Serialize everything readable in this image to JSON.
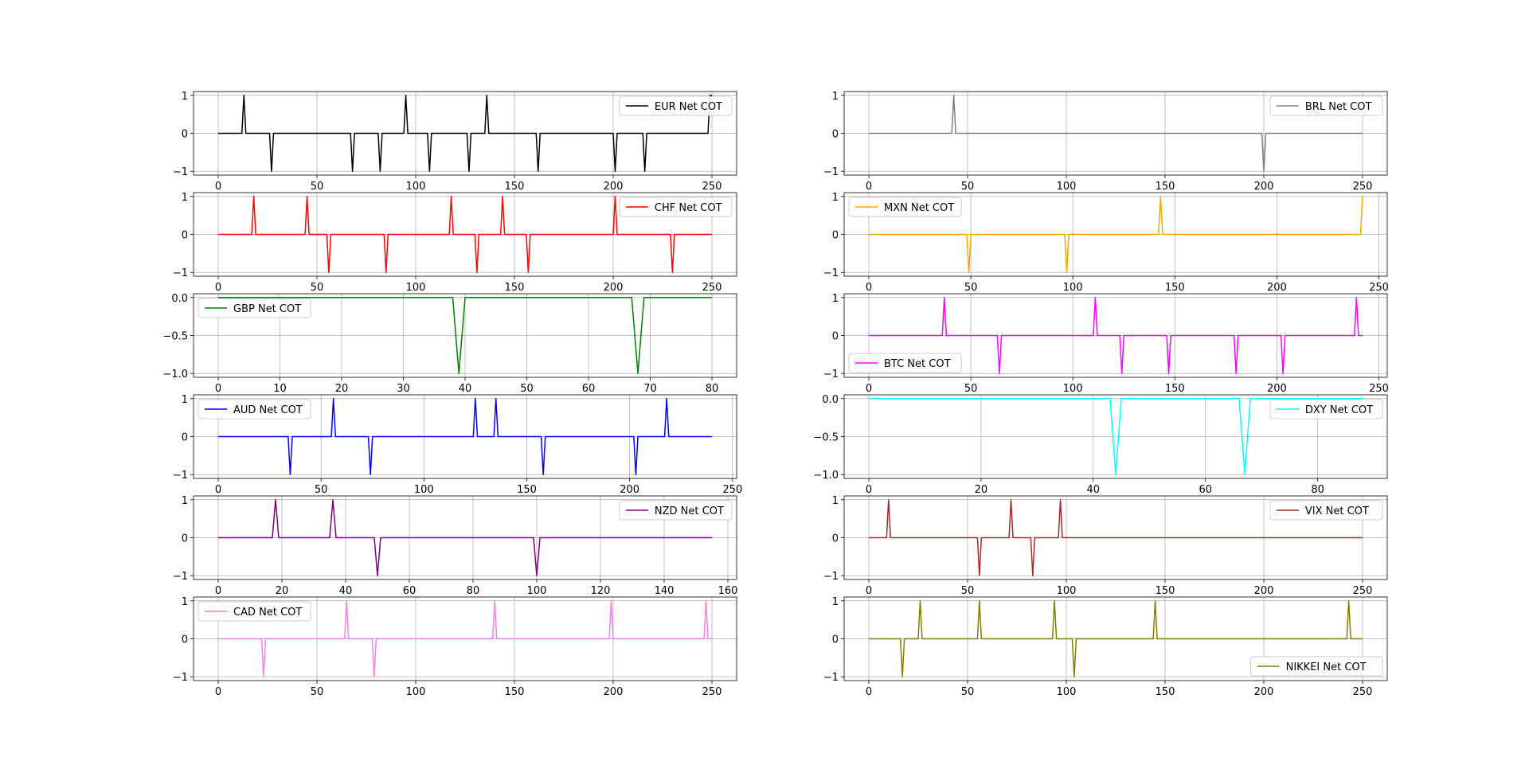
{
  "chart_data": [
    {
      "type": "line",
      "series": [
        {
          "name": "EUR Net COT",
          "color": "#000000",
          "x": [
            0,
            12,
            13,
            14,
            26,
            27,
            28,
            67,
            68,
            69,
            81,
            82,
            83,
            94,
            95,
            96,
            106,
            107,
            108,
            126,
            127,
            128,
            135,
            136,
            137,
            161,
            162,
            163,
            200,
            201,
            202,
            215,
            216,
            217,
            248,
            249,
            250
          ],
          "y": [
            0,
            0,
            1,
            0,
            0,
            -1,
            0,
            0,
            -1,
            0,
            0,
            -1,
            0,
            0,
            1,
            0,
            0,
            -1,
            0,
            0,
            -1,
            0,
            0,
            1,
            0,
            0,
            -1,
            0,
            0,
            -1,
            0,
            0,
            -1,
            0,
            0,
            1,
            1
          ]
        }
      ],
      "xticks": [
        "0",
        "50",
        "100",
        "150",
        "200",
        "250"
      ],
      "yticks": [
        "−1",
        "0",
        "1"
      ],
      "xlim": [
        -12.5,
        262.5
      ],
      "ylim": [
        -1.1,
        1.1
      ],
      "legend": "upper right",
      "grid": true
    },
    {
      "type": "line",
      "series": [
        {
          "name": "CHF Net COT",
          "color": "#ff0000",
          "x": [
            0,
            17,
            18,
            19,
            44,
            45,
            46,
            55,
            56,
            57,
            84,
            85,
            86,
            117,
            118,
            119,
            130,
            131,
            132,
            143,
            144,
            145,
            156,
            157,
            158,
            200,
            201,
            202,
            229,
            230,
            231,
            250
          ],
          "y": [
            0,
            0,
            1,
            0,
            0,
            1,
            0,
            0,
            -1,
            0,
            0,
            -1,
            0,
            0,
            1,
            0,
            0,
            -1,
            0,
            0,
            1,
            0,
            0,
            -1,
            0,
            0,
            1,
            0,
            0,
            -1,
            0,
            0
          ]
        }
      ],
      "xticks": [
        "0",
        "50",
        "100",
        "150",
        "200",
        "250"
      ],
      "yticks": [
        "−1",
        "0",
        "1"
      ],
      "xlim": [
        -12.5,
        262.5
      ],
      "ylim": [
        -1.1,
        1.1
      ],
      "legend": "upper right",
      "grid": true
    },
    {
      "type": "line",
      "series": [
        {
          "name": "GBP Net COT",
          "color": "#008000",
          "x": [
            0,
            38,
            39,
            40,
            67,
            68,
            69,
            80
          ],
          "y": [
            0,
            0,
            -1,
            0,
            0,
            -1,
            0,
            0
          ]
        }
      ],
      "xticks": [
        "0",
        "10",
        "20",
        "30",
        "40",
        "50",
        "60",
        "70",
        "80"
      ],
      "yticks": [
        "−1.0",
        "−0.5",
        "0.0"
      ],
      "xlim": [
        -4,
        84
      ],
      "ylim": [
        -1.05,
        0.05
      ],
      "legend": "upper left",
      "grid": true
    },
    {
      "type": "line",
      "series": [
        {
          "name": "AUD Net COT",
          "color": "#0000ff",
          "x": [
            0,
            34,
            35,
            36,
            55,
            56,
            57,
            73,
            74,
            75,
            124,
            125,
            126,
            134,
            135,
            136,
            157,
            158,
            159,
            202,
            203,
            204,
            217,
            218,
            219,
            240
          ],
          "y": [
            0,
            0,
            -1,
            0,
            0,
            1,
            0,
            0,
            -1,
            0,
            0,
            1,
            0,
            0,
            1,
            0,
            0,
            -1,
            0,
            0,
            -1,
            0,
            0,
            1,
            0,
            0
          ]
        }
      ],
      "xticks": [
        "0",
        "50",
        "100",
        "150",
        "200",
        "250"
      ],
      "yticks": [
        "−1",
        "0",
        "1"
      ],
      "xlim": [
        -12,
        252
      ],
      "ylim": [
        -1.1,
        1.1
      ],
      "legend": "upper left",
      "grid": true
    },
    {
      "type": "line",
      "series": [
        {
          "name": "NZD Net COT",
          "color": "#800080",
          "x": [
            0,
            17,
            18,
            19,
            35,
            36,
            37,
            49,
            50,
            51,
            99,
            100,
            101,
            155
          ],
          "y": [
            0,
            0,
            1,
            0,
            0,
            1,
            0,
            0,
            -1,
            0,
            0,
            -1,
            0,
            0
          ]
        }
      ],
      "xticks": [
        "0",
        "20",
        "40",
        "60",
        "80",
        "100",
        "120",
        "140",
        "160"
      ],
      "yticks": [
        "−1",
        "0",
        "1"
      ],
      "xlim": [
        -7.75,
        162.75
      ],
      "ylim": [
        -1.1,
        1.1
      ],
      "legend": "upper right",
      "grid": true
    },
    {
      "type": "line",
      "series": [
        {
          "name": "CAD Net COT",
          "color": "#ee82ee",
          "x": [
            0,
            22,
            23,
            24,
            64,
            65,
            66,
            78,
            79,
            80,
            139,
            140,
            141,
            198,
            199,
            200,
            246,
            247,
            248,
            250
          ],
          "y": [
            0,
            0,
            -1,
            0,
            0,
            1,
            0,
            0,
            -1,
            0,
            0,
            1,
            0,
            0,
            1,
            0,
            0,
            1,
            0,
            0
          ]
        }
      ],
      "xticks": [
        "0",
        "50",
        "100",
        "150",
        "200",
        "250"
      ],
      "yticks": [
        "−1",
        "0",
        "1"
      ],
      "xlim": [
        -12.5,
        262.5
      ],
      "ylim": [
        -1.1,
        1.1
      ],
      "legend": "upper left",
      "grid": true
    },
    {
      "type": "line",
      "series": [
        {
          "name": "BRL Net COT",
          "color": "#808080",
          "x": [
            0,
            42,
            43,
            44,
            199,
            200,
            201,
            250
          ],
          "y": [
            0,
            0,
            1,
            0,
            0,
            -1,
            0,
            0
          ]
        }
      ],
      "xticks": [
        "0",
        "50",
        "100",
        "150",
        "200",
        "250"
      ],
      "yticks": [
        "−1",
        "0",
        "1"
      ],
      "xlim": [
        -12.5,
        262.5
      ],
      "ylim": [
        -1.1,
        1.1
      ],
      "legend": "upper right",
      "grid": true
    },
    {
      "type": "line",
      "series": [
        {
          "name": "MXN Net COT",
          "color": "#ffa500",
          "x": [
            0,
            48,
            49,
            50,
            96,
            97,
            98,
            142,
            143,
            144,
            241,
            242
          ],
          "y": [
            0,
            0,
            -1,
            0,
            0,
            -1,
            0,
            0,
            1,
            0,
            0,
            1
          ]
        }
      ],
      "xticks": [
        "0",
        "50",
        "100",
        "150",
        "200",
        "250"
      ],
      "yticks": [
        "−1",
        "0",
        "1"
      ],
      "xlim": [
        -12.1,
        254.1
      ],
      "ylim": [
        -1.1,
        1.1
      ],
      "legend": "upper left",
      "grid": true
    },
    {
      "type": "line",
      "series": [
        {
          "name": "BTC Net COT",
          "color": "#ff00ff",
          "x": [
            0,
            36,
            37,
            38,
            63,
            64,
            65,
            110,
            111,
            112,
            123,
            124,
            125,
            146,
            147,
            148,
            179,
            180,
            181,
            202,
            203,
            204,
            238,
            239,
            240,
            242
          ],
          "y": [
            0,
            0,
            1,
            0,
            0,
            -1,
            0,
            0,
            1,
            0,
            0,
            -1,
            0,
            0,
            -1,
            0,
            0,
            -1,
            0,
            0,
            -1,
            0,
            0,
            1,
            0,
            0
          ]
        }
      ],
      "xticks": [
        "0",
        "50",
        "100",
        "150",
        "200",
        "250"
      ],
      "yticks": [
        "−1",
        "0",
        "1"
      ],
      "xlim": [
        -12.1,
        254.1
      ],
      "ylim": [
        -1.1,
        1.1
      ],
      "legend": "lower left",
      "grid": true
    },
    {
      "type": "line",
      "series": [
        {
          "name": "DXY Net COT",
          "color": "#00ffff",
          "x": [
            0,
            43,
            44,
            45,
            66,
            67,
            68,
            88
          ],
          "y": [
            0,
            0,
            -1,
            0,
            0,
            -1,
            0,
            0
          ]
        }
      ],
      "xticks": [
        "0",
        "20",
        "40",
        "60",
        "80"
      ],
      "yticks": [
        "−1.0",
        "−0.5",
        "0.0"
      ],
      "xlim": [
        -4.4,
        92.4
      ],
      "ylim": [
        -1.05,
        0.05
      ],
      "legend": "upper right",
      "grid": true
    },
    {
      "type": "line",
      "series": [
        {
          "name": "VIX Net COT",
          "color": "#a52a2a",
          "x": [
            0,
            9,
            10,
            11,
            55,
            56,
            57,
            71,
            72,
            73,
            82,
            83,
            84,
            96,
            97,
            98,
            250
          ],
          "y": [
            0,
            0,
            1,
            0,
            0,
            -1,
            0,
            0,
            1,
            0,
            0,
            -1,
            0,
            0,
            1,
            0,
            0
          ]
        }
      ],
      "xticks": [
        "0",
        "50",
        "100",
        "150",
        "200",
        "250"
      ],
      "yticks": [
        "−1",
        "0",
        "1"
      ],
      "xlim": [
        -12.5,
        262.5
      ],
      "ylim": [
        -1.1,
        1.1
      ],
      "legend": "upper right",
      "grid": true
    },
    {
      "type": "line",
      "series": [
        {
          "name": "NIKKEI Net COT",
          "color": "#808000",
          "x": [
            0,
            16,
            17,
            18,
            25,
            26,
            27,
            55,
            56,
            57,
            93,
            94,
            95,
            103,
            104,
            105,
            144,
            145,
            146,
            242,
            243,
            244,
            250
          ],
          "y": [
            0,
            0,
            -1,
            0,
            0,
            1,
            0,
            0,
            1,
            0,
            0,
            1,
            0,
            0,
            -1,
            0,
            0,
            1,
            0,
            0,
            1,
            0,
            0
          ]
        }
      ],
      "xticks": [
        "0",
        "50",
        "100",
        "150",
        "200",
        "250"
      ],
      "yticks": [
        "−1",
        "0",
        "1"
      ],
      "xlim": [
        -12.5,
        262.5
      ],
      "ylim": [
        -1.1,
        1.1
      ],
      "legend": "lower right",
      "grid": true
    }
  ]
}
